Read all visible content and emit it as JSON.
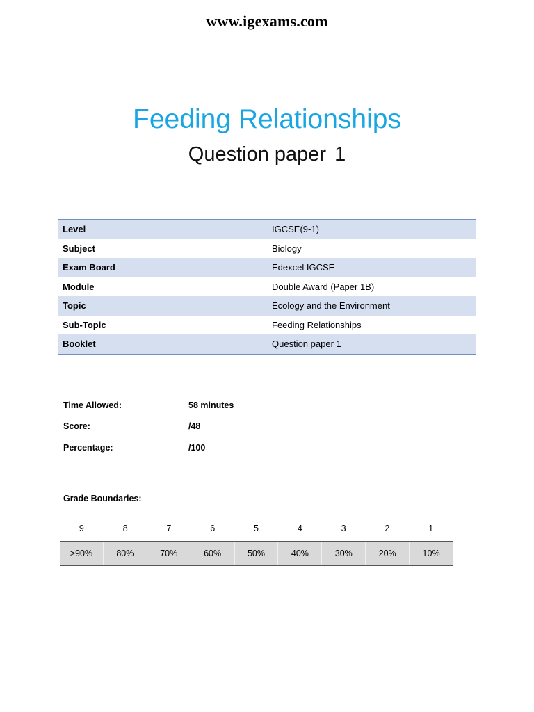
{
  "header": {
    "url": "www.igexams.com"
  },
  "title": "Feeding Relationships",
  "subtitle": {
    "text": "Question paper",
    "number": "1"
  },
  "info": [
    {
      "key": "Level",
      "value": "IGCSE(9-1)"
    },
    {
      "key": "Subject",
      "value": "Biology"
    },
    {
      "key": "Exam Board",
      "value": "Edexcel IGCSE"
    },
    {
      "key": "Module",
      "value": "Double Award (Paper 1B)"
    },
    {
      "key": "Topic",
      "value": "Ecology and the Environment"
    },
    {
      "key": "Sub-Topic",
      "value": "Feeding Relationships"
    },
    {
      "key": "Booklet",
      "value": "Question paper 1"
    }
  ],
  "meta": [
    {
      "key": "Time Allowed:",
      "value": "58 minutes"
    },
    {
      "key": "Score:",
      "value": "/48"
    },
    {
      "key": "Percentage:",
      "value": "/100"
    }
  ],
  "grade_boundaries": {
    "label": "Grade Boundaries:",
    "grades": [
      "9",
      "8",
      "7",
      "6",
      "5",
      "4",
      "3",
      "2",
      "1"
    ],
    "percentages": [
      ">90%",
      "80%",
      "70%",
      "60%",
      "50%",
      "40%",
      "30%",
      "20%",
      "10%"
    ]
  },
  "colors": {
    "title": "#17a6e3",
    "table_shade": "#d5dff0",
    "table_border": "#6f8fc6",
    "grade_fill": "#d9d9d9"
  }
}
